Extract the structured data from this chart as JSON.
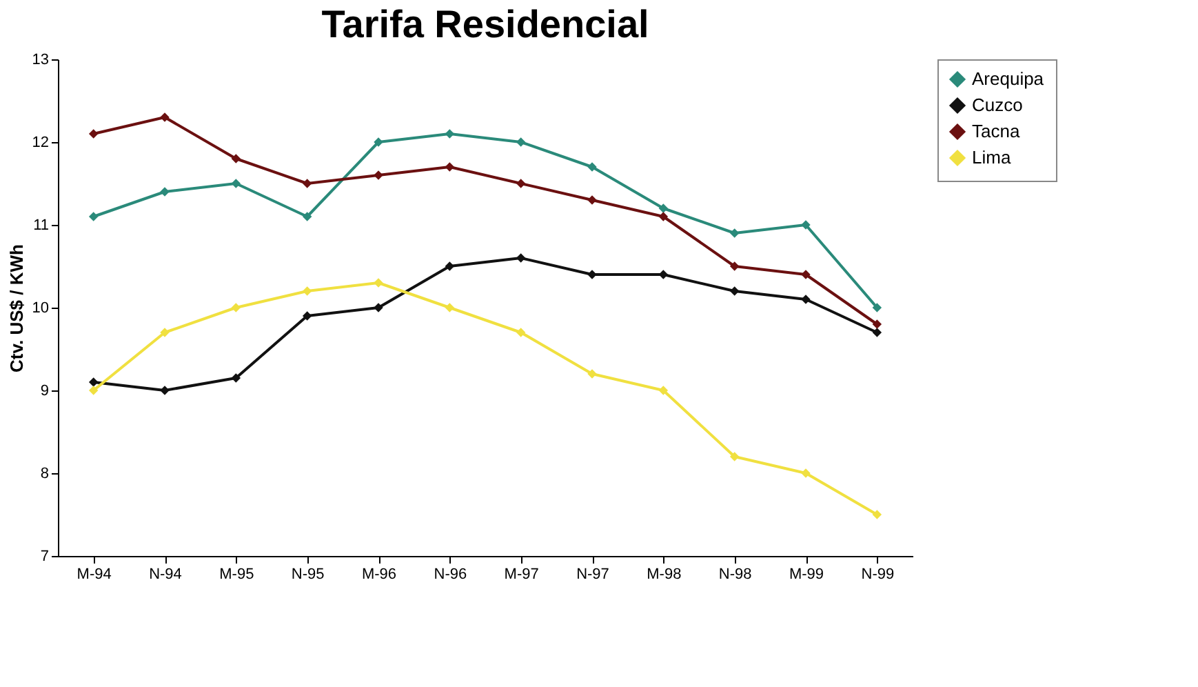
{
  "chart_data": {
    "type": "line",
    "title": "Tarifa Residencial",
    "ylabel": "Ctv. US$ / KWh",
    "categories": [
      "M-94",
      "N-94",
      "M-95",
      "N-95",
      "M-96",
      "N-96",
      "M-97",
      "N-97",
      "M-98",
      "N-98",
      "M-99",
      "N-99"
    ],
    "series": [
      {
        "name": "Arequipa",
        "color": "#2a8a7a",
        "values": [
          11.1,
          11.4,
          11.5,
          11.1,
          12.0,
          12.1,
          12.0,
          11.7,
          11.2,
          10.9,
          11.0,
          10.0
        ]
      },
      {
        "name": "Cuzco",
        "color": "#111111",
        "values": [
          9.1,
          9.0,
          9.15,
          9.9,
          10.0,
          10.5,
          10.6,
          10.4,
          10.4,
          10.2,
          10.1,
          9.7
        ]
      },
      {
        "name": "Tacna",
        "color": "#6b1010",
        "values": [
          12.1,
          12.3,
          11.8,
          11.5,
          11.6,
          11.7,
          11.5,
          11.3,
          11.1,
          10.5,
          10.4,
          9.8
        ]
      },
      {
        "name": "Lima",
        "color": "#f0e040",
        "values": [
          9.0,
          9.7,
          10.0,
          10.2,
          10.3,
          10.0,
          9.7,
          9.2,
          9.0,
          8.2,
          8.0,
          7.5
        ]
      }
    ],
    "ylim": [
      7,
      13
    ],
    "yticks": [
      7,
      8,
      9,
      10,
      11,
      12,
      13
    ],
    "grid": false,
    "legend": "top right",
    "marker": "diamond",
    "line_style": "solid"
  }
}
